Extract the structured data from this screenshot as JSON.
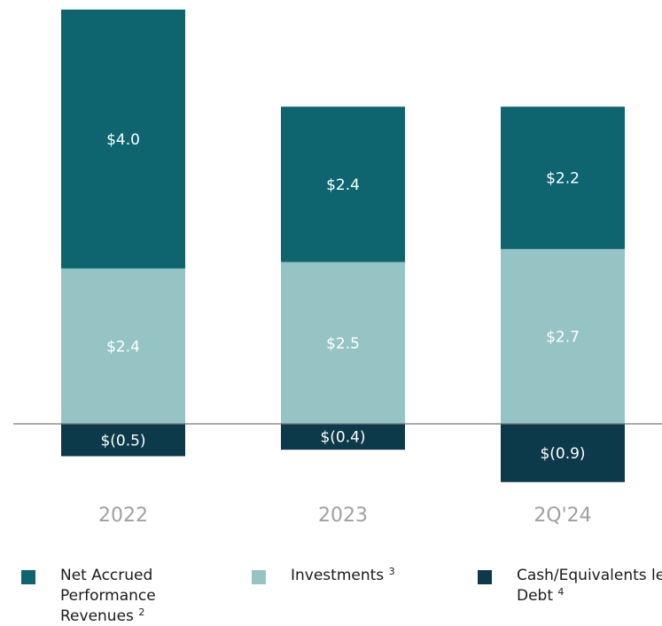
{
  "chart_data": {
    "type": "stacked_bar",
    "categories": [
      "2022",
      "2023",
      "2Q'24"
    ],
    "series": [
      {
        "name": "Net Accrued Performance Revenues",
        "footnote": "2",
        "color": "#0e6570",
        "values": [
          4.0,
          2.4,
          2.2
        ],
        "value_labels": [
          "$4.0",
          "$2.4",
          "$2.2"
        ]
      },
      {
        "name": "Investments",
        "footnote": "3",
        "color": "#96c4c5",
        "values": [
          2.4,
          2.5,
          2.7
        ],
        "value_labels": [
          "$2.4",
          "$2.5",
          "$2.7"
        ]
      },
      {
        "name": "Cash/Equivalents less Debt",
        "footnote": "4",
        "color": "#0d3a4a",
        "values": [
          -0.5,
          -0.4,
          -0.9
        ],
        "value_labels": [
          "$(0.5)",
          "$(0.4)",
          "$(0.9)"
        ]
      }
    ],
    "ylim": [
      -1.0,
      6.5
    ]
  }
}
